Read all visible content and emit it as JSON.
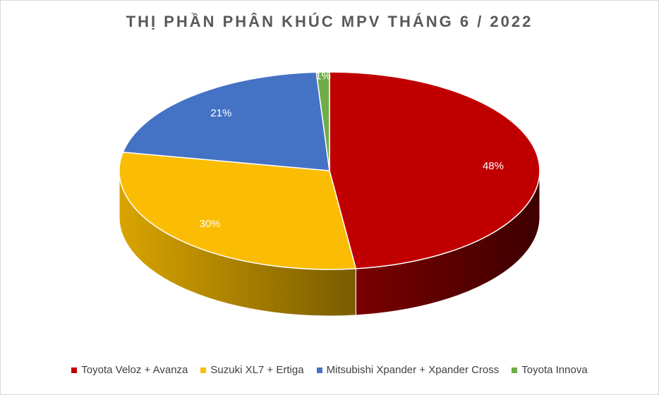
{
  "chart_data": {
    "type": "pie",
    "title": "THỊ PHẦN PHÂN KHÚC MPV THÁNG 6 / 2022",
    "categories": [
      "Toyota Veloz + Avanza",
      "Suzuki XL7 + Ertiga",
      "Mitsubishi Xpander + Xpander Cross",
      "Toyota Innova"
    ],
    "values": [
      48,
      30,
      21,
      1
    ],
    "data_labels": [
      "48%",
      "30%",
      "21%",
      "1%"
    ],
    "colors": [
      "#c00000",
      "#fbbc04",
      "#4472c4",
      "#70ad47"
    ],
    "legend_position": "bottom",
    "style": "3d"
  }
}
